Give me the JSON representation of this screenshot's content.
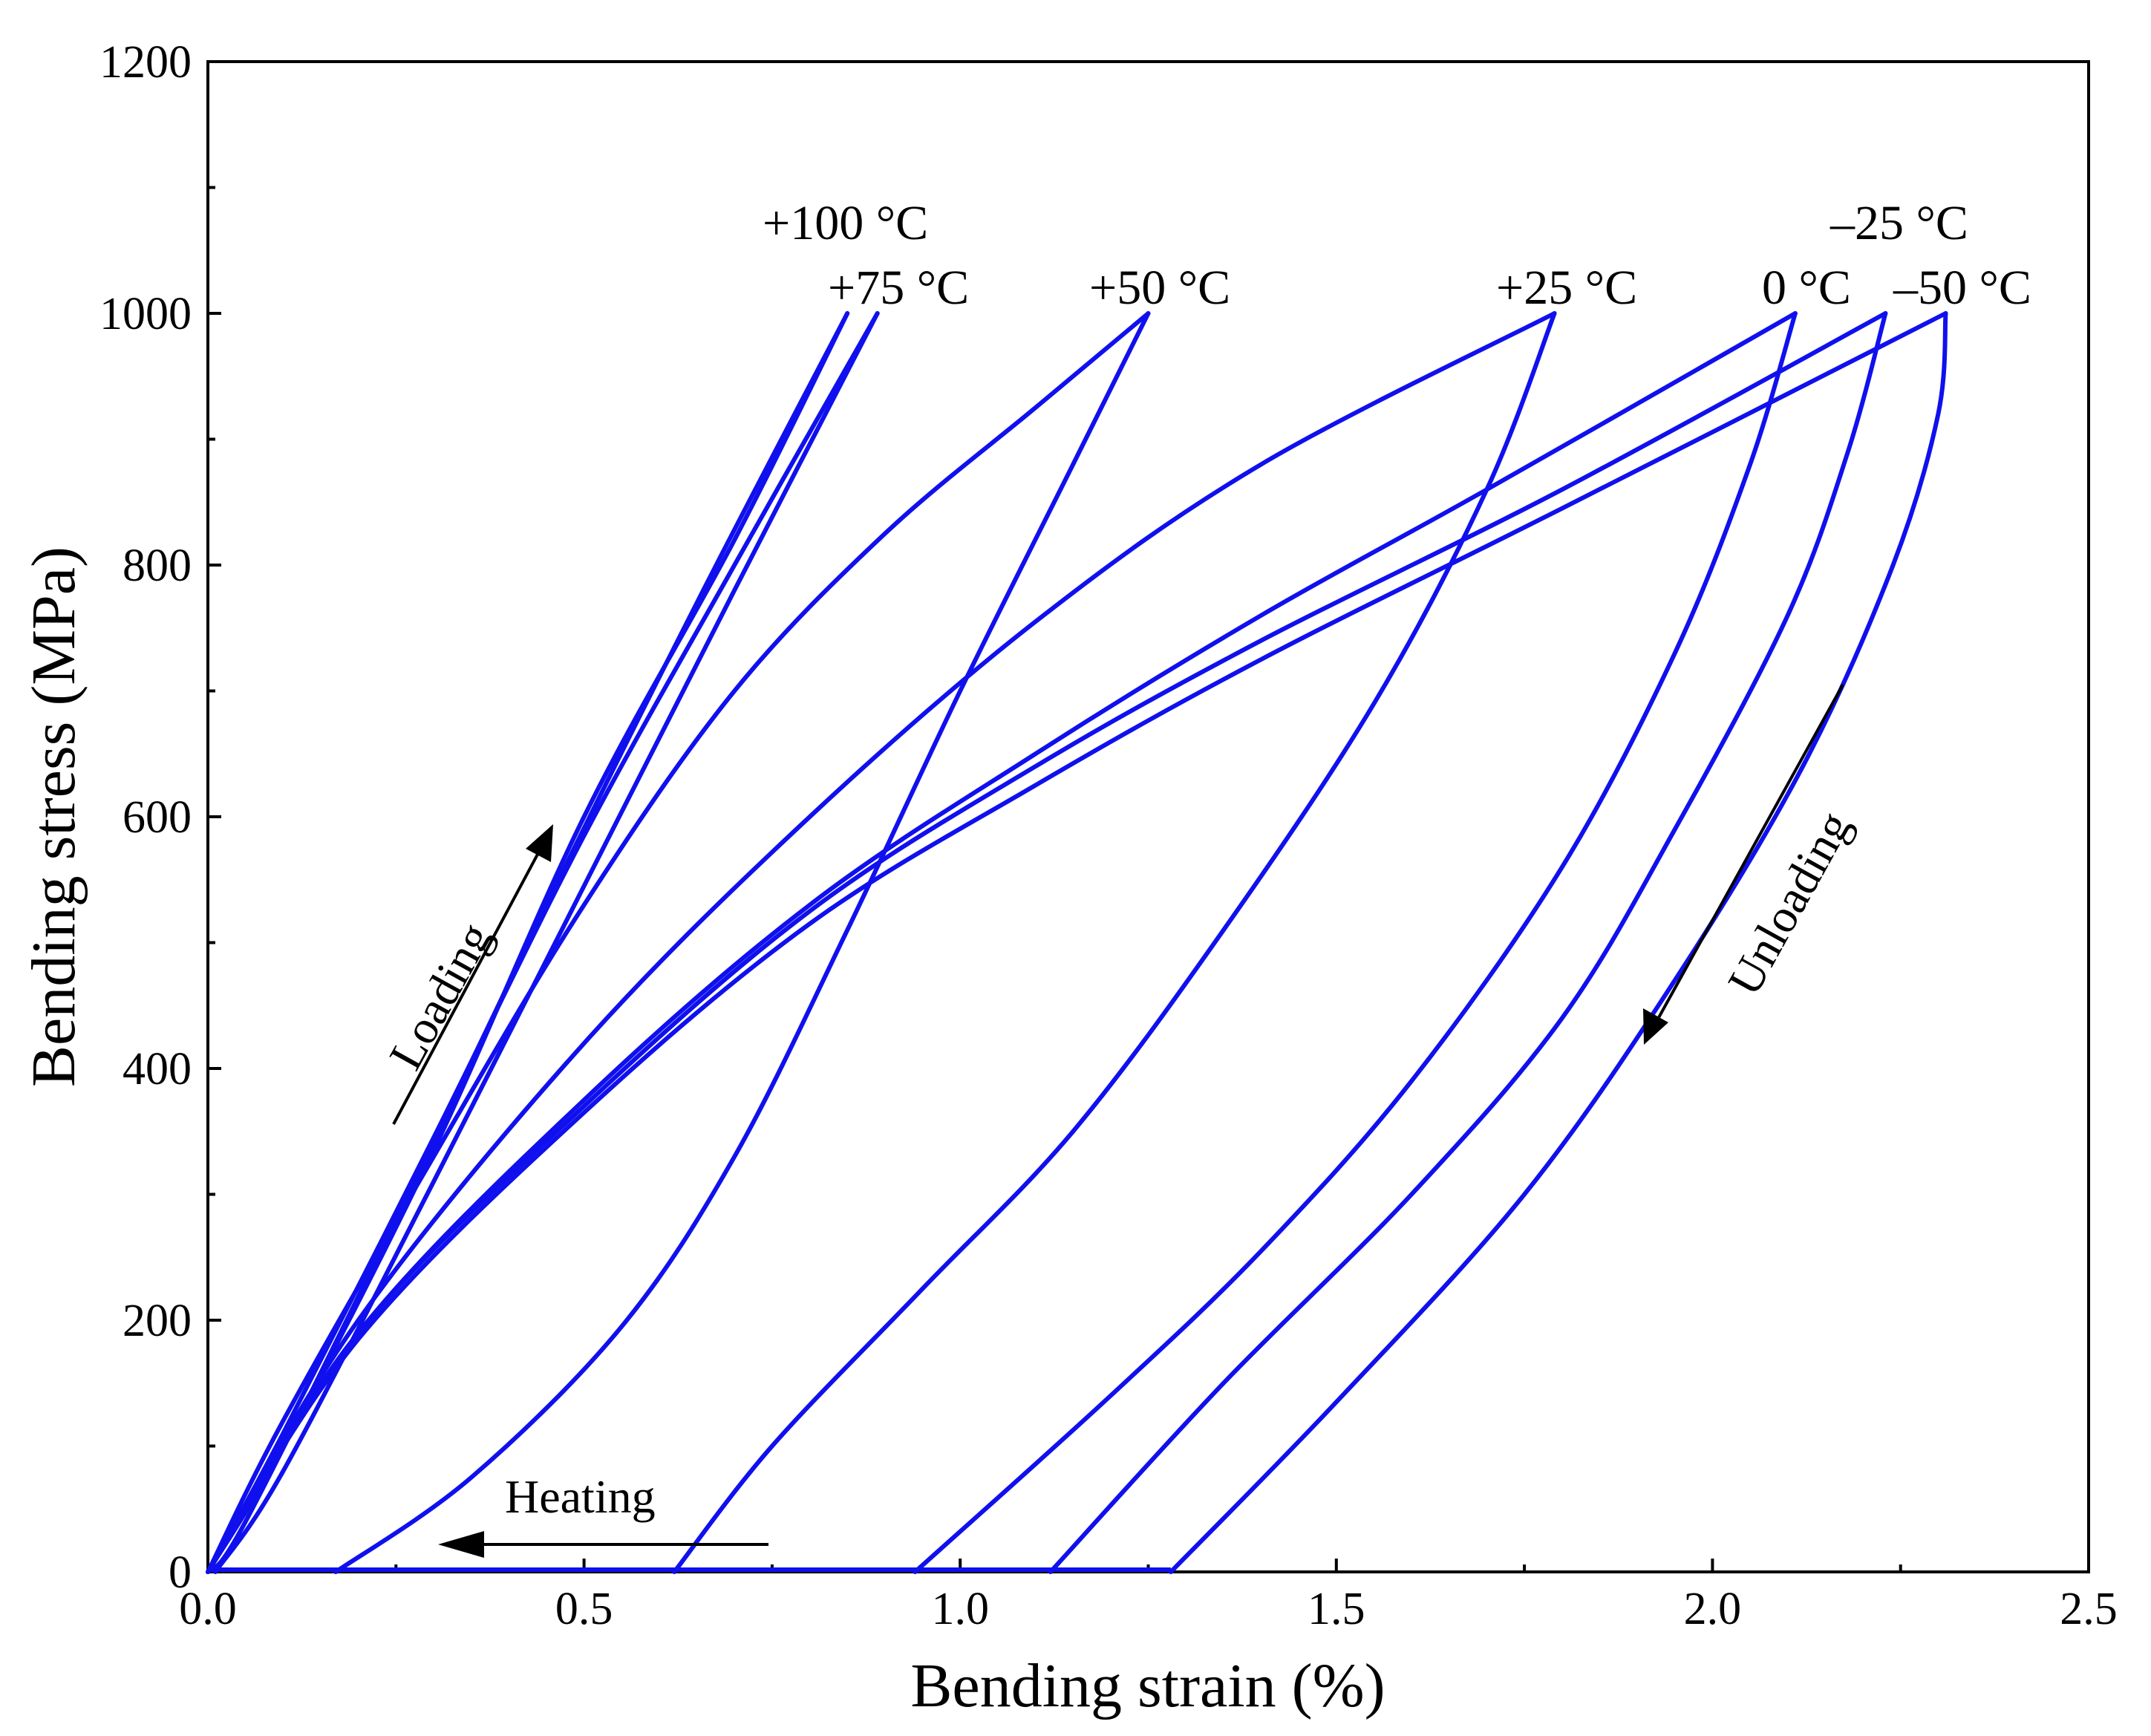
{
  "chart_data": {
    "type": "line",
    "title": "",
    "xlabel": "Bending strain (%)",
    "ylabel": "Bending stress (MPa)",
    "xlim": [
      0,
      2.5
    ],
    "ylim": [
      0,
      1200
    ],
    "x_ticks": [
      0.0,
      0.5,
      1.0,
      1.5,
      2.0,
      2.5
    ],
    "x_tick_labels": [
      "0.0",
      "0.5",
      "1.0",
      "1.5",
      "2.0",
      "2.5"
    ],
    "y_ticks": [
      0,
      200,
      400,
      600,
      800,
      1000,
      1200
    ],
    "y_tick_labels": [
      "0",
      "200",
      "400",
      "600",
      "800",
      "1000",
      "1200"
    ],
    "grid": false,
    "line_color": "#1010ee",
    "series": [
      {
        "name": "+100 °C",
        "label": "+100 °C",
        "loading": [
          [
            0,
            0
          ],
          [
            0.1,
            100
          ],
          [
            0.3,
            335
          ],
          [
            0.5,
            600
          ],
          [
            0.7,
            820
          ],
          [
            0.85,
            1000
          ]
        ],
        "unloading": [
          [
            0.85,
            1000
          ],
          [
            0.65,
            770
          ],
          [
            0.45,
            530
          ],
          [
            0.25,
            280
          ],
          [
            0.05,
            40
          ],
          [
            0,
            0
          ]
        ]
      },
      {
        "name": "+75 °C",
        "label": "+75 °C",
        "loading": [
          [
            0,
            0
          ],
          [
            0.1,
            110
          ],
          [
            0.3,
            345
          ],
          [
            0.5,
            585
          ],
          [
            0.7,
            800
          ],
          [
            0.89,
            1000
          ]
        ],
        "unloading": [
          [
            0.89,
            1000
          ],
          [
            0.7,
            780
          ],
          [
            0.5,
            545
          ],
          [
            0.3,
            310
          ],
          [
            0.1,
            80
          ],
          [
            0.01,
            0
          ]
        ]
      },
      {
        "name": "+50 °C",
        "label": "+50 °C",
        "loading": [
          [
            0,
            0
          ],
          [
            0.1,
            120
          ],
          [
            0.3,
            330
          ],
          [
            0.5,
            530
          ],
          [
            0.7,
            700
          ],
          [
            0.9,
            825
          ],
          [
            1.1,
            925
          ],
          [
            1.25,
            1000
          ]
        ],
        "unloading": [
          [
            1.25,
            1000
          ],
          [
            1.15,
            880
          ],
          [
            1.0,
            700
          ],
          [
            0.85,
            510
          ],
          [
            0.7,
            330
          ],
          [
            0.55,
            195
          ],
          [
            0.35,
            75
          ],
          [
            0.17,
            0
          ]
        ]
      },
      {
        "name": "+25 °C",
        "label": "+25 °C",
        "loading": [
          [
            0,
            0
          ],
          [
            0.2,
            200
          ],
          [
            0.5,
            420
          ],
          [
            0.8,
            600
          ],
          [
            1.1,
            755
          ],
          [
            1.4,
            880
          ],
          [
            1.79,
            1000
          ]
        ],
        "unloading": [
          [
            1.79,
            1000
          ],
          [
            1.7,
            860
          ],
          [
            1.55,
            690
          ],
          [
            1.35,
            510
          ],
          [
            1.15,
            350
          ],
          [
            0.95,
            225
          ],
          [
            0.75,
            100
          ],
          [
            0.62,
            0
          ]
        ]
      },
      {
        "name": "0 °C",
        "label": "0 °C",
        "loading": [
          [
            0,
            0
          ],
          [
            0.2,
            190
          ],
          [
            0.5,
            375
          ],
          [
            0.8,
            530
          ],
          [
            1.1,
            650
          ],
          [
            1.4,
            760
          ],
          [
            1.7,
            860
          ],
          [
            2.11,
            1000
          ]
        ],
        "unloading": [
          [
            2.11,
            1000
          ],
          [
            2.05,
            880
          ],
          [
            1.95,
            730
          ],
          [
            1.8,
            560
          ],
          [
            1.6,
            390
          ],
          [
            1.4,
            255
          ],
          [
            1.2,
            140
          ],
          [
            0.94,
            0
          ]
        ]
      },
      {
        "name": "-25 °C",
        "label": "–25 °C",
        "loading": [
          [
            0,
            0
          ],
          [
            0.2,
            190
          ],
          [
            0.5,
            370
          ],
          [
            0.8,
            525
          ],
          [
            1.1,
            640
          ],
          [
            1.4,
            740
          ],
          [
            1.8,
            860
          ],
          [
            2.23,
            1000
          ]
        ],
        "unloading": [
          [
            2.23,
            1000
          ],
          [
            2.18,
            890
          ],
          [
            2.1,
            760
          ],
          [
            1.95,
            590
          ],
          [
            1.8,
            440
          ],
          [
            1.6,
            300
          ],
          [
            1.35,
            150
          ],
          [
            1.12,
            0
          ]
        ]
      },
      {
        "name": "-50 °C",
        "label": "–50 °C",
        "loading": [
          [
            0,
            0
          ],
          [
            0.2,
            185
          ],
          [
            0.5,
            365
          ],
          [
            0.8,
            515
          ],
          [
            1.1,
            625
          ],
          [
            1.4,
            725
          ],
          [
            1.8,
            845
          ],
          [
            2.31,
            1000
          ]
        ],
        "unloading": [
          [
            2.31,
            1000
          ],
          [
            2.3,
            920
          ],
          [
            2.24,
            800
          ],
          [
            2.12,
            640
          ],
          [
            1.95,
            470
          ],
          [
            1.75,
            300
          ],
          [
            1.5,
            135
          ],
          [
            1.28,
            0
          ]
        ]
      }
    ],
    "annotations": [
      {
        "text": "Loading",
        "kind": "arrow",
        "from": [
          0.25,
          355
        ],
        "to": [
          0.46,
          595
        ]
      },
      {
        "text": "Unloading",
        "kind": "arrow",
        "from": [
          2.17,
          705
        ],
        "to": [
          1.91,
          415
        ]
      },
      {
        "text": "Heating",
        "kind": "arrow",
        "from": [
          0.75,
          22
        ],
        "to": [
          0.3,
          22
        ]
      }
    ]
  }
}
